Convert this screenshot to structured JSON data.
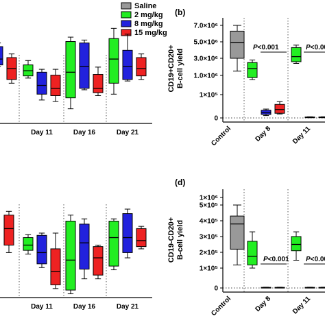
{
  "legend": {
    "items": [
      {
        "label": "Saline",
        "color": "#999999"
      },
      {
        "label": "2 mg/kg",
        "color": "#22ee22"
      },
      {
        "label": "8 mg/kg",
        "color": "#2222dd"
      },
      {
        "label": "15 mg/kg",
        "color": "#ee2222"
      }
    ]
  },
  "panel_b": {
    "letter": "(b)",
    "ylabel_1": "CD19+CD20+",
    "ylabel_2": "B-cell yield"
  },
  "panel_d": {
    "letter": "(d)",
    "ylabel_1": "CD19-CD20+",
    "ylabel_2": "B-cell yield"
  },
  "chart_data": [
    {
      "type": "box",
      "panel": "top-left (partially visible)",
      "categories": [
        "Day 11",
        "Day 16",
        "Day 21"
      ],
      "series": [
        {
          "name": "2 mg/kg",
          "color": "#22ee22",
          "boxes": [
            [
              0.62,
              0.65,
              0.72,
              0.8,
              0.86
            ],
            [
              0.2,
              0.35,
              0.7,
              1.12,
              1.18
            ],
            [
              0.4,
              0.55,
              0.88,
              1.16,
              1.3
            ]
          ]
        },
        {
          "name": "8 mg/kg",
          "color": "#2222dd",
          "boxes": [
            [
              0.32,
              0.4,
              0.52,
              0.7,
              0.74
            ],
            [
              0.46,
              0.48,
              0.78,
              1.1,
              1.14
            ],
            [
              0.58,
              0.6,
              0.78,
              1.0,
              1.22
            ]
          ]
        },
        {
          "name": "15 mg/kg",
          "color": "#ee2222",
          "boxes": [
            [
              0.3,
              0.38,
              0.48,
              0.66,
              0.74
            ],
            [
              0.38,
              0.42,
              0.48,
              0.67,
              0.77
            ],
            [
              0.6,
              0.65,
              0.75,
              0.9,
              0.95
            ]
          ]
        }
      ],
      "partial_left": [
        {
          "color": "#2222dd",
          "box": [
            0.78,
            0.8,
            0.88,
            1.05,
            1.1
          ]
        },
        {
          "color": "#ee2222",
          "box": [
            0.55,
            0.6,
            0.75,
            0.9,
            0.95
          ]
        }
      ],
      "ylim": [
        0,
        1.5
      ]
    },
    {
      "type": "box",
      "panel": "(b)",
      "categories": [
        "Control",
        "Day 8",
        "Day 11"
      ],
      "yticks": [
        "0",
        "1×10⁵",
        "1.0×10⁶",
        "3.0×10⁶",
        "5.0×10⁶",
        "7.0×10⁶"
      ],
      "annotations": [
        "P<0.001",
        "P<0.00"
      ],
      "series": [
        {
          "name": "Saline",
          "color": "#999999",
          "boxes": [
            [
              1500000.0,
              3000000.0,
              4900000.0,
              6300000.0,
              7200000.0
            ],
            null,
            null
          ]
        },
        {
          "name": "2 mg/kg",
          "color": "#22ee22",
          "boxes": [
            null,
            [
              800000.0,
              900000.0,
              1800000.0,
              2500000.0,
              2800000.0
            ],
            [
              2400000.0,
              2600000.0,
              3200000.0,
              4300000.0,
              4600000.0
            ]
          ]
        },
        {
          "name": "8 mg/kg",
          "color": "#2222dd",
          "boxes": [
            null,
            [
              10000,
              15000,
              22000,
              33000,
              38000
            ],
            [
              1000,
              2000,
              3000,
              4000,
              5000
            ]
          ]
        },
        {
          "name": "15 mg/kg",
          "color": "#ee2222",
          "boxes": [
            null,
            [
              17000,
              20000,
              36000,
              58000,
              70000
            ],
            [
              1000,
              2000,
              3000,
              4000,
              5000
            ]
          ]
        }
      ]
    },
    {
      "type": "box",
      "panel": "bottom-left (partially visible)",
      "categories": [
        "Day 11",
        "Day 16",
        "Day 21"
      ],
      "series": [
        {
          "name": "2 mg/kg",
          "color": "#22ee22",
          "boxes": [
            [
              0.58,
              0.63,
              0.7,
              0.8,
              0.84
            ],
            [
              0.05,
              0.1,
              0.5,
              1.02,
              1.1
            ],
            [
              0.37,
              0.42,
              0.8,
              1.02,
              1.05
            ]
          ]
        },
        {
          "name": "8 mg/kg",
          "color": "#2222dd",
          "boxes": [
            [
              0.4,
              0.45,
              0.6,
              0.83,
              0.86
            ],
            [
              0.25,
              0.38,
              0.73,
              0.98,
              1.05
            ],
            [
              0.53,
              0.6,
              0.8,
              1.12,
              1.18
            ]
          ]
        },
        {
          "name": "15 mg/kg",
          "color": "#ee2222",
          "boxes": [
            [
              0.12,
              0.17,
              0.35,
              0.65,
              0.86
            ],
            [
              0.25,
              0.3,
              0.53,
              0.68,
              0.7
            ],
            [
              0.65,
              0.68,
              0.76,
              0.92,
              0.95
            ]
          ]
        }
      ],
      "partial_left": [
        {
          "color": "#ee2222",
          "box": [
            0.6,
            0.7,
            0.92,
            1.1,
            1.15
          ]
        }
      ],
      "ylim": [
        0,
        1.5
      ]
    },
    {
      "type": "box",
      "panel": "(d)",
      "categories": [
        "Control",
        "Day 8",
        "Day 11"
      ],
      "yticks": [
        "0",
        "1×10⁵",
        "2×10⁵",
        "3×10⁵",
        "4×10⁵",
        "5×10⁵",
        "1×10⁶"
      ],
      "annotations": [
        "P<0.001",
        "P<0.00"
      ],
      "series": [
        {
          "name": "Saline",
          "color": "#999999",
          "boxes": [
            [
              120000.0,
              220000.0,
              380000.0,
              430000.0,
              500000.0
            ],
            null,
            null
          ]
        },
        {
          "name": "2 mg/kg",
          "color": "#22ee22",
          "boxes": [
            null,
            [
              100000.0,
              120000.0,
              175000.0,
              270000.0,
              330000.0
            ],
            [
              150000.0,
              210000.0,
              250000.0,
              300000.0,
              330000.0
            ]
          ]
        },
        {
          "name": "8 mg/kg",
          "color": "#2222dd",
          "boxes": [
            null,
            [
              0,
              1000,
              2000,
              3000,
              4000
            ],
            [
              0,
              1000,
              2000,
              3000,
              4000
            ]
          ]
        },
        {
          "name": "15 mg/kg",
          "color": "#ee2222",
          "boxes": [
            null,
            [
              0,
              1000,
              2000,
              3000,
              4000
            ],
            [
              0,
              1000,
              2000,
              3000,
              4000
            ]
          ]
        }
      ]
    }
  ]
}
